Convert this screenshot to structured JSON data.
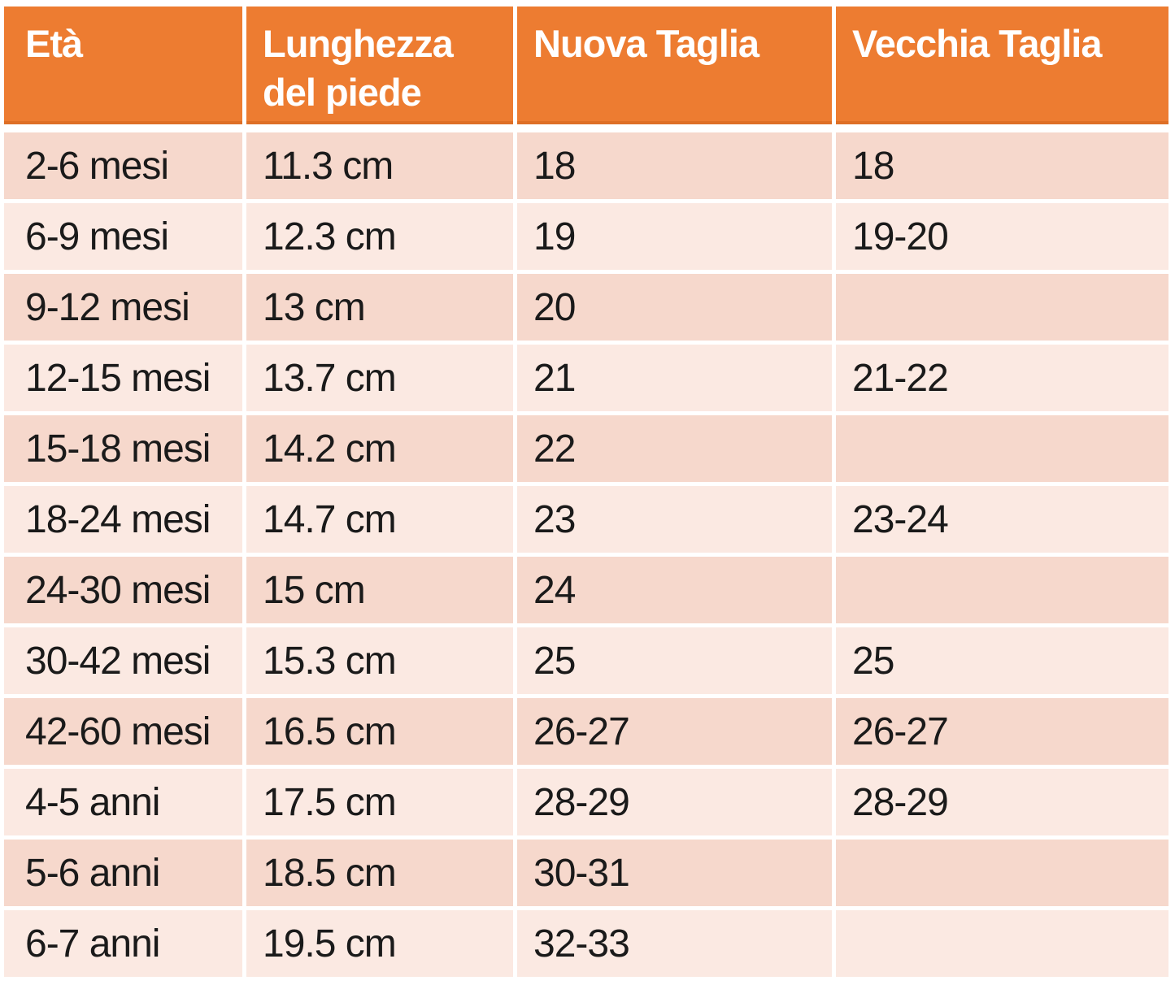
{
  "chart_data": {
    "type": "table",
    "columns": [
      "Età",
      "Lunghezza del piede",
      "Nuova Taglia",
      "Vecchia Taglia"
    ],
    "rows": [
      [
        "2-6 mesi",
        "11.3 cm",
        "18",
        "18"
      ],
      [
        "6-9 mesi",
        "12.3 cm",
        "19",
        "19-20"
      ],
      [
        "9-12 mesi",
        "13 cm",
        "20",
        ""
      ],
      [
        "12-15 mesi",
        "13.7 cm",
        "21",
        "21-22"
      ],
      [
        "15-18 mesi",
        "14.2 cm",
        "22",
        ""
      ],
      [
        "18-24 mesi",
        "14.7 cm",
        "23",
        "23-24"
      ],
      [
        "24-30 mesi",
        "15 cm",
        "24",
        ""
      ],
      [
        "30-42 mesi",
        "15.3 cm",
        "25",
        "25"
      ],
      [
        "42-60 mesi",
        "16.5 cm",
        "26-27",
        "26-27"
      ],
      [
        "4-5 anni",
        "17.5 cm",
        "28-29",
        "28-29"
      ],
      [
        "5-6 anni",
        "18.5 cm",
        "30-31",
        ""
      ],
      [
        "6-7 anni",
        "19.5 cm",
        "32-33",
        ""
      ]
    ],
    "layout": {
      "grid": "banded-rows",
      "header_position": "top"
    }
  },
  "colors": {
    "header_bg": "#ED7C31",
    "header_border": "#DE6F26",
    "header_text": "#FFFFFF",
    "band_dark": "#F6D8CC",
    "band_light": "#FBE9E2",
    "body_text": "#1A1A1A",
    "background": "#FFFFFF"
  }
}
